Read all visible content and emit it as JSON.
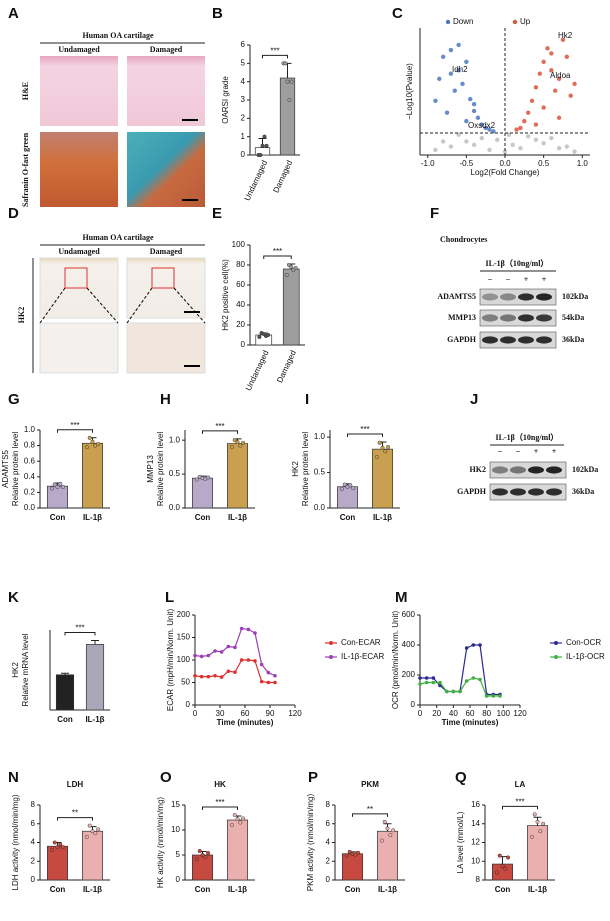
{
  "figure": {
    "letters": [
      "A",
      "B",
      "C",
      "D",
      "E",
      "F",
      "G",
      "H",
      "I",
      "J",
      "K",
      "L",
      "M",
      "N",
      "O",
      "P",
      "Q"
    ],
    "histology": {
      "header": "Human OA cartilage",
      "columns": [
        "Undamaged",
        "Damaged"
      ],
      "rows_A": [
        "H&E",
        "Safranin O-fast green"
      ],
      "row_D": "HK2"
    },
    "blot_F": {
      "title": "Chondrocytes",
      "treatment": "IL-1β（10ng/ml）",
      "lanes": [
        "−",
        "−",
        "+",
        "+"
      ],
      "proteins": [
        "ADAMTS5",
        "MMP13",
        "GAPDH"
      ],
      "sizes": [
        "102kDa",
        "54kDa",
        "36kDa"
      ]
    },
    "blot_J": {
      "treatment": "IL-1β（10ng/ml）",
      "lanes": [
        "−",
        "−",
        "+",
        "+"
      ],
      "proteins": [
        "HK2",
        "GAPDH"
      ],
      "sizes": [
        "102kDa",
        "36kDa"
      ]
    }
  },
  "chart_data": [
    {
      "type": "bar",
      "ylabels": [
        "OARSI grade"
      ],
      "categories": [
        "Undamaged",
        "Damaged"
      ],
      "values": [
        0.4,
        4.2
      ],
      "errors": [
        0.5,
        0.8
      ],
      "points": [
        [
          0,
          0,
          0.5,
          1,
          0.5
        ],
        [
          5,
          5,
          4,
          3,
          4
        ]
      ],
      "colors": [
        "#ffffff",
        "#9e9e9e"
      ],
      "ylim": [
        0,
        6
      ],
      "yticks": [
        0,
        1,
        2,
        3,
        4,
        5,
        6
      ],
      "significance": "***"
    },
    {
      "type": "scatter",
      "xlabel": "Log2(Fold Change)",
      "ylabel": "−Log10(Pvalue)",
      "xlim": [
        -1.1,
        1.1
      ],
      "ylim": [
        0,
        7.5
      ],
      "xticks": [
        {
          "value": -1,
          "label": "-1.0"
        },
        {
          "value": -0.5,
          "label": "-0.5"
        },
        {
          "value": 0,
          "label": "0.0"
        },
        {
          "value": 0.5,
          "label": "0.5"
        },
        {
          "value": 1,
          "label": "1.0"
        }
      ],
      "vline": 0,
      "hline": 1.3,
      "annotations": [
        "Idh2",
        "Oxsdx2",
        "Hk2",
        "Aldoa"
      ],
      "series": [
        {
          "name": "Down",
          "color": "#4a78c0",
          "x": [
            -0.9,
            -0.85,
            -0.8,
            -0.75,
            -0.7,
            -0.65,
            -0.6,
            -0.55,
            -0.5,
            -0.45,
            -0.4,
            -0.35,
            -0.3,
            -0.25,
            -0.2,
            -0.15,
            -0.6,
            -0.7,
            -0.5,
            -0.4
          ],
          "values": [
            3.2,
            4.5,
            5.8,
            2.5,
            6.2,
            3.8,
            5.0,
            4.2,
            2.0,
            3.3,
            2.6,
            2.2,
            1.8,
            1.6,
            1.5,
            1.4,
            6.5,
            4.8,
            5.5,
            3.0
          ]
        },
        {
          "name": "Up",
          "color": "#d9543a",
          "x": [
            0.15,
            0.2,
            0.25,
            0.3,
            0.35,
            0.4,
            0.45,
            0.5,
            0.55,
            0.6,
            0.65,
            0.7,
            0.75,
            0.8,
            0.85,
            0.9,
            0.5,
            0.6,
            0.7,
            0.4
          ],
          "values": [
            1.5,
            1.6,
            2.0,
            2.5,
            3.2,
            4.0,
            4.8,
            5.5,
            6.3,
            5.0,
            3.8,
            4.5,
            6.8,
            5.8,
            3.5,
            4.2,
            2.8,
            6.0,
            2.2,
            1.8
          ]
        },
        {
          "color": "#bdbdbd",
          "x": [
            -0.9,
            -0.7,
            -0.5,
            -0.3,
            -0.1,
            0.0,
            0.1,
            0.3,
            0.5,
            0.7,
            0.9,
            -0.6,
            -0.2,
            0.2,
            0.6,
            -0.4,
            0.4,
            -0.8,
            0.8,
            0.05
          ],
          "values": [
            0.3,
            0.5,
            0.8,
            1.0,
            0.9,
            0.2,
            0.6,
            1.1,
            0.7,
            0.4,
            0.2,
            1.2,
            0.3,
            0.4,
            1.0,
            0.6,
            0.9,
            0.8,
            0.5,
            1.2
          ]
        }
      ]
    },
    {
      "type": "bar",
      "ylabels": [
        "HK2 positive cell(%)"
      ],
      "categories": [
        "Undamaged",
        "Damaged"
      ],
      "values": [
        10,
        76
      ],
      "errors": [
        2,
        5
      ],
      "points": [
        [
          8,
          12,
          11,
          9,
          10
        ],
        [
          70,
          80,
          78,
          75,
          77
        ]
      ],
      "colors": [
        "#ffffff",
        "#9e9e9e"
      ],
      "ylim": [
        0,
        100
      ],
      "yticks": [
        0,
        20,
        40,
        60,
        80,
        100
      ],
      "significance": "***"
    },
    {
      "type": "bar",
      "ylabels": [
        "ADAMTS5",
        "Relative protein level"
      ],
      "categories": [
        "Con",
        "IL-1β"
      ],
      "values": [
        0.28,
        0.83
      ],
      "errors": [
        0.04,
        0.07
      ],
      "points": [
        [
          0.25,
          0.3,
          0.27,
          0.31,
          0.27
        ],
        [
          0.78,
          0.9,
          0.85,
          0.8,
          0.82
        ]
      ],
      "colors": [
        "#b9a9c9",
        "#c9a050"
      ],
      "ylim": [
        0,
        1.0
      ],
      "yticks": [
        {
          "value": 0,
          "label": "0.0"
        },
        0.2,
        0.4,
        0.6,
        0.8,
        {
          "value": 1,
          "label": "1.0"
        }
      ],
      "significance": "***"
    },
    {
      "type": "bar",
      "ylabels": [
        "MMP13",
        "Relative protein level"
      ],
      "categories": [
        "Con",
        "IL-1β"
      ],
      "values": [
        0.44,
        0.95
      ],
      "errors": [
        0.03,
        0.07
      ],
      "points": [
        [
          0.42,
          0.46,
          0.44,
          0.43,
          0.45
        ],
        [
          0.9,
          1.0,
          0.97,
          0.92,
          0.96
        ]
      ],
      "colors": [
        "#b9a9c9",
        "#c9a050"
      ],
      "ylim": [
        0,
        1.15
      ],
      "yticks": [
        {
          "value": 0,
          "label": "0.0"
        },
        0.5,
        {
          "value": 1,
          "label": "1.0"
        }
      ],
      "significance": "***"
    },
    {
      "type": "bar",
      "ylabels": [
        "HK2",
        "Relative protein level"
      ],
      "categories": [
        "Con",
        "IL-1β"
      ],
      "values": [
        0.3,
        0.83
      ],
      "errors": [
        0.04,
        0.1
      ],
      "points": [
        [
          0.27,
          0.33,
          0.3,
          0.32,
          0.28
        ],
        [
          0.72,
          0.92,
          0.85,
          0.8,
          0.86
        ]
      ],
      "colors": [
        "#b9a9c9",
        "#c9a050"
      ],
      "ylim": [
        0,
        1.1
      ],
      "yticks": [
        {
          "value": 0,
          "label": "0.0"
        },
        0.5,
        {
          "value": 1,
          "label": "1.0"
        }
      ],
      "significance": "***"
    },
    {
      "type": "bar",
      "ylabels": [
        "HK2",
        "Relative mRNA level"
      ],
      "categories": [
        "Con",
        "IL-1β"
      ],
      "values": [
        1.1,
        2.05
      ],
      "errors": [
        0.05,
        0.12
      ],
      "colors": [
        "#222222",
        "#a8a8b8"
      ],
      "ylim": [
        0,
        2.5
      ],
      "significance": "***"
    },
    {
      "type": "line",
      "xlabel": "Time (minutes)",
      "ylabel": "ECAR (mpH/min/Norm. Unit)",
      "x": [
        0,
        8,
        16,
        24,
        32,
        40,
        48,
        56,
        64,
        72,
        80,
        88,
        96
      ],
      "xlim": [
        0,
        120
      ],
      "xticks": [
        0,
        30,
        60,
        90,
        120
      ],
      "ylim": [
        0,
        200
      ],
      "yticks": [
        0,
        50,
        100,
        150,
        200
      ],
      "series": [
        {
          "name": "Con-ECAR",
          "color": "#e03030",
          "values": [
            65,
            63,
            63,
            65,
            62,
            75,
            73,
            100,
            100,
            98,
            52,
            50,
            50
          ]
        },
        {
          "name": "IL-1β-ECAR",
          "color": "#9b3fb5",
          "values": [
            110,
            108,
            110,
            120,
            118,
            130,
            128,
            170,
            168,
            160,
            90,
            72,
            65
          ]
        }
      ]
    },
    {
      "type": "line",
      "xlabel": "Time (minutes)",
      "ylabel": "OCR (pmol/min/Norm. Unit)",
      "x": [
        0,
        8,
        16,
        24,
        32,
        40,
        48,
        56,
        64,
        72,
        80,
        88,
        96
      ],
      "xlim": [
        0,
        120
      ],
      "xticks": [
        0,
        20,
        40,
        60,
        80,
        100,
        120
      ],
      "ylim": [
        0,
        600
      ],
      "yticks": [
        0,
        200,
        400,
        600
      ],
      "series": [
        {
          "name": "Con-OCR",
          "color": "#2a2a90",
          "values": [
            180,
            180,
            180,
            130,
            90,
            90,
            90,
            380,
            400,
            400,
            70,
            70,
            70
          ]
        },
        {
          "name": "IL-1β-OCR",
          "color": "#40b040",
          "values": [
            140,
            150,
            150,
            150,
            90,
            90,
            90,
            160,
            180,
            170,
            60,
            60,
            60
          ]
        }
      ]
    },
    {
      "type": "bar",
      "title": "LDH",
      "ylabels": [
        "LDH activity (nmol/min/mg)"
      ],
      "categories": [
        "Con",
        "IL-1β"
      ],
      "values": [
        3.6,
        5.2
      ],
      "errors": [
        0.4,
        0.5
      ],
      "points": [
        [
          3.2,
          4.0,
          3.5,
          3.8,
          3.5
        ],
        [
          4.6,
          5.8,
          5.2,
          5.0,
          5.4
        ]
      ],
      "colors": [
        "#c64a3f",
        "#eab0b0"
      ],
      "ylim": [
        0,
        8
      ],
      "yticks": [
        0,
        2,
        4,
        6,
        8
      ],
      "significance": "**"
    },
    {
      "type": "bar",
      "title": "HK",
      "ylabels": [
        "HK activity (nmol/min/mg)"
      ],
      "categories": [
        "Con",
        "IL-1β"
      ],
      "values": [
        5,
        12
      ],
      "errors": [
        0.7,
        0.8
      ],
      "points": [
        [
          4.2,
          5.8,
          5.0,
          4.6,
          5.4
        ],
        [
          11,
          13,
          12.2,
          11.5,
          12.3
        ]
      ],
      "colors": [
        "#c64a3f",
        "#eab0b0"
      ],
      "ylim": [
        0,
        15
      ],
      "yticks": [
        0,
        5,
        10,
        15
      ],
      "significance": "***"
    },
    {
      "type": "bar",
      "title": "PKM",
      "ylabels": [
        "PKM activity (nmol/min/mg)"
      ],
      "categories": [
        "Con",
        "IL-1β"
      ],
      "values": [
        2.8,
        5.2
      ],
      "errors": [
        0.2,
        0.8
      ],
      "points": [
        [
          2.6,
          3.0,
          2.8,
          2.7,
          2.9
        ],
        [
          4.2,
          6.2,
          5.5,
          4.8,
          5.3
        ]
      ],
      "colors": [
        "#c64a3f",
        "#eab0b0"
      ],
      "ylim": [
        0,
        8
      ],
      "yticks": [
        0,
        2,
        4,
        6,
        8
      ],
      "significance": "**"
    },
    {
      "type": "bar",
      "title": "LA",
      "ylabels": [
        "LA level (mmol/L)"
      ],
      "categories": [
        "Con",
        "IL-1β"
      ],
      "values": [
        9.7,
        13.8
      ],
      "errors": [
        0.8,
        0.9
      ],
      "points": [
        [
          8.8,
          10.6,
          9.5,
          9.2,
          10.4
        ],
        [
          12.6,
          15,
          14.2,
          13.2,
          14
        ]
      ],
      "colors": [
        "#c64a3f",
        "#eab0b0"
      ],
      "ylim": [
        8,
        16
      ],
      "yticks": [
        8,
        10,
        12,
        14,
        16
      ],
      "significance": "***"
    }
  ]
}
